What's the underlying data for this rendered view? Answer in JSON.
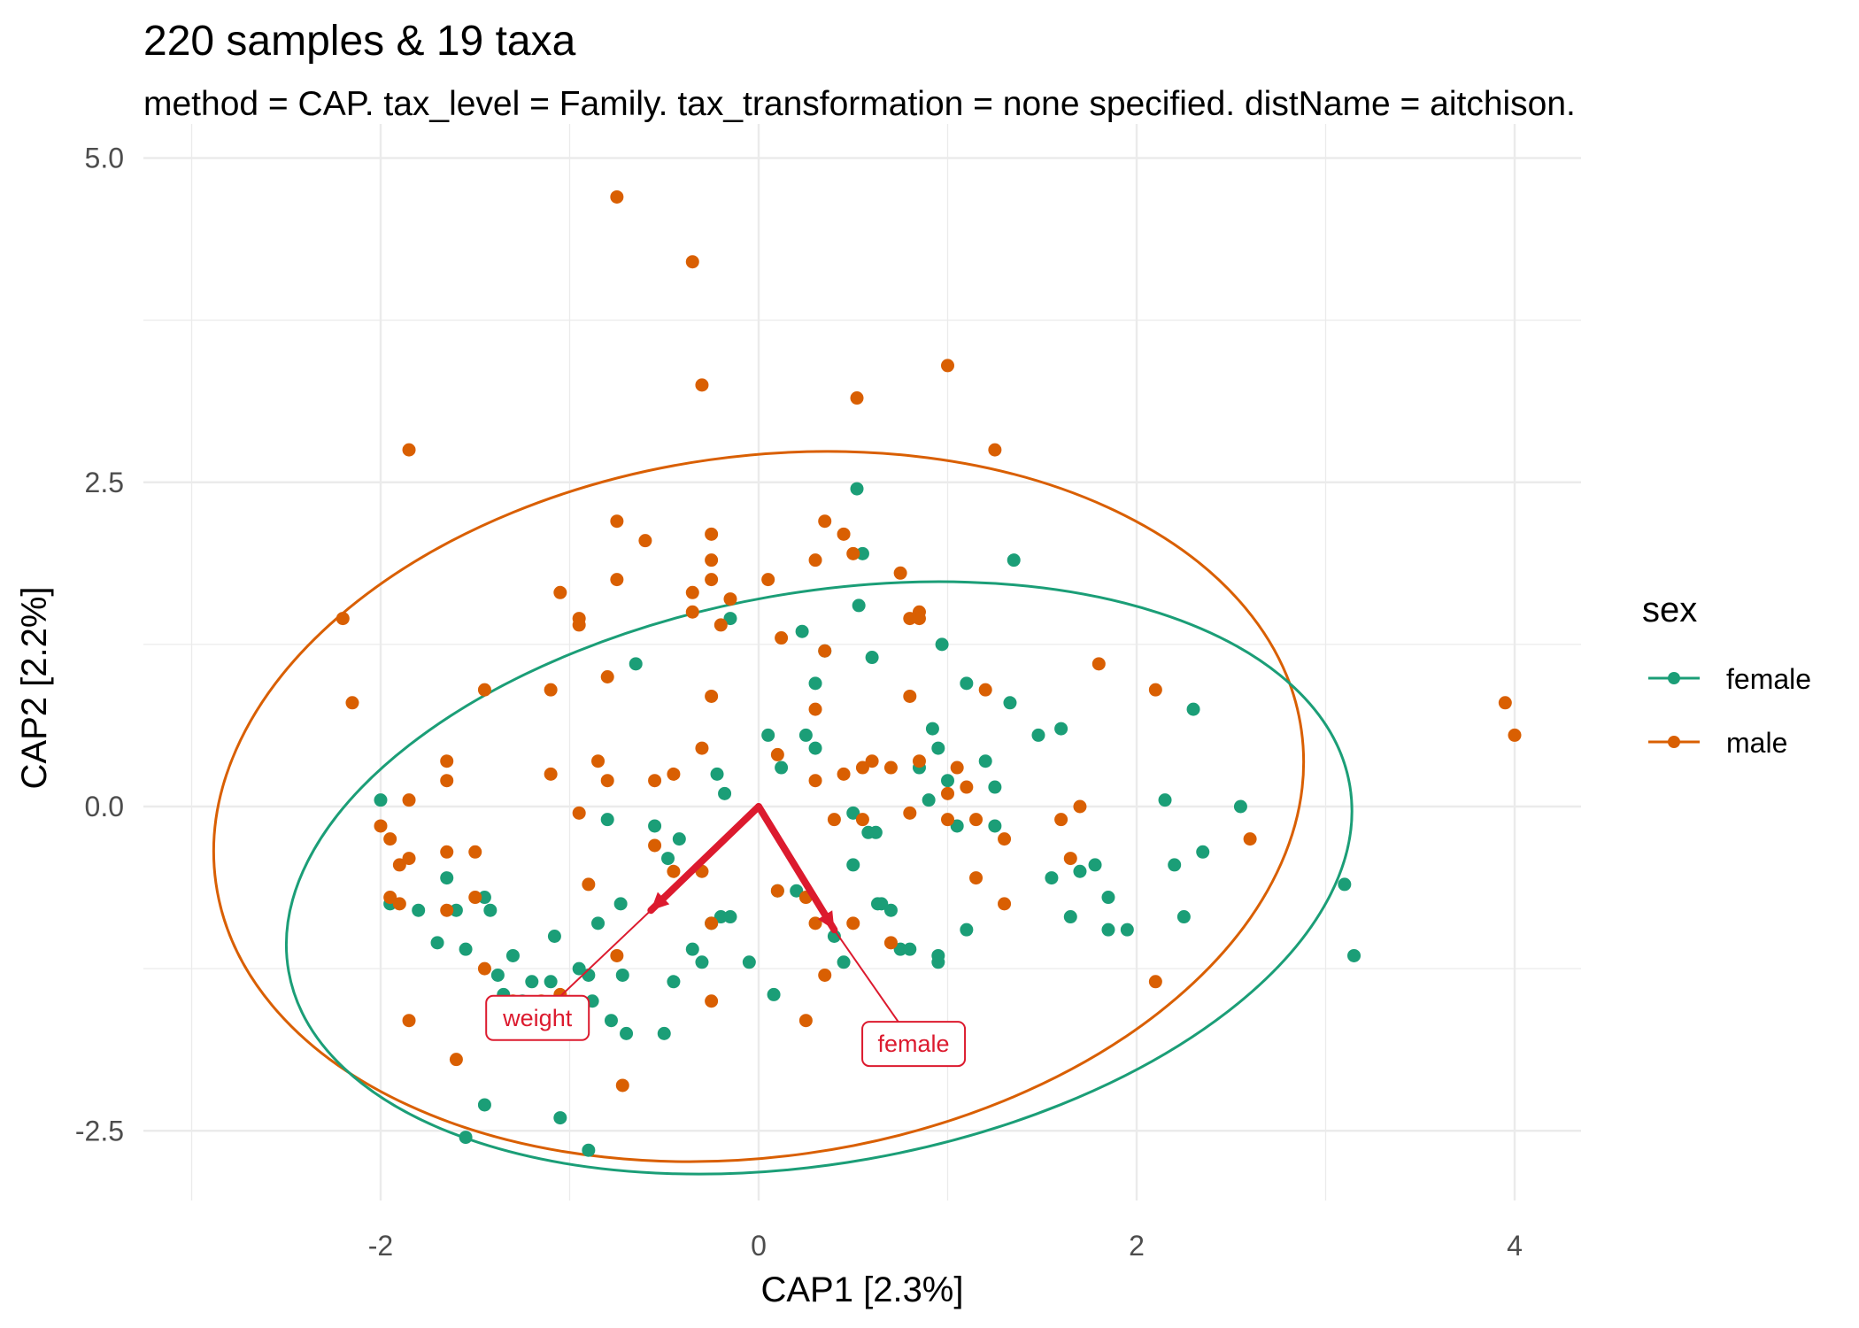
{
  "chart_data": {
    "type": "scatter",
    "title": "220 samples & 19 taxa",
    "subtitle": "method = CAP. tax_level = Family. tax_transformation = none specified. distName = aitchison.",
    "xlabel": "CAP1 [2.3%]",
    "ylabel": "CAP2 [2.2%]",
    "xlim": [
      -3.0,
      4.4
    ],
    "ylim": [
      -3.1,
      5.2
    ],
    "x_ticks": [
      -2,
      0,
      2,
      4
    ],
    "x_tick_labels": [
      "-2",
      "0",
      "2",
      "4"
    ],
    "y_ticks": [
      -2.5,
      0.0,
      2.5,
      5.0
    ],
    "y_tick_labels": [
      "-2.5",
      "0.0",
      "2.5",
      "5.0"
    ],
    "grid": true,
    "legend": {
      "title": "sex",
      "position": "right",
      "entries": [
        "female",
        "male"
      ]
    },
    "colors": {
      "female": "#1b9e77",
      "male": "#d95f02",
      "arrow": "#dc1a2e",
      "grid": "#ebebeb"
    },
    "series": [
      {
        "name": "female",
        "points": [
          [
            -2.0,
            0.05
          ],
          [
            -1.95,
            -0.75
          ],
          [
            -1.8,
            -0.8
          ],
          [
            -1.7,
            -1.05
          ],
          [
            -1.65,
            -0.55
          ],
          [
            -1.6,
            -0.8
          ],
          [
            -1.55,
            -1.1
          ],
          [
            -1.45,
            -0.7
          ],
          [
            -1.42,
            -0.8
          ],
          [
            -1.38,
            -1.3
          ],
          [
            -1.35,
            -1.45
          ],
          [
            -1.3,
            -1.15
          ],
          [
            -1.25,
            -1.5
          ],
          [
            -1.2,
            -1.35
          ],
          [
            -1.1,
            -1.35
          ],
          [
            -1.08,
            -1.0
          ],
          [
            -0.95,
            -1.25
          ],
          [
            -0.9,
            -1.3
          ],
          [
            -0.88,
            -1.5
          ],
          [
            -0.85,
            -0.9
          ],
          [
            -0.8,
            -0.1
          ],
          [
            -0.78,
            -1.65
          ],
          [
            -0.73,
            -0.75
          ],
          [
            -0.72,
            -1.3
          ],
          [
            -0.7,
            -1.75
          ],
          [
            -0.65,
            1.1
          ],
          [
            -0.55,
            -0.15
          ],
          [
            -0.5,
            -1.75
          ],
          [
            -0.48,
            -0.4
          ],
          [
            -0.45,
            -1.35
          ],
          [
            -0.42,
            -0.25
          ],
          [
            -0.35,
            -1.1
          ],
          [
            -0.3,
            -1.2
          ],
          [
            -0.25,
            -0.9
          ],
          [
            -0.2,
            -0.85
          ],
          [
            -0.22,
            0.25
          ],
          [
            -0.18,
            0.1
          ],
          [
            -0.15,
            -0.85
          ],
          [
            -0.05,
            -1.2
          ],
          [
            0.05,
            0.55
          ],
          [
            0.08,
            -1.45
          ],
          [
            0.1,
            -0.65
          ],
          [
            0.12,
            0.3
          ],
          [
            0.2,
            -0.65
          ],
          [
            0.23,
            1.35
          ],
          [
            0.25,
            0.55
          ],
          [
            0.3,
            0.45
          ],
          [
            0.3,
            0.95
          ],
          [
            0.35,
            1.2
          ],
          [
            0.4,
            -1.0
          ],
          [
            0.45,
            -1.2
          ],
          [
            0.5,
            -0.05
          ],
          [
            0.5,
            -0.45
          ],
          [
            0.53,
            1.55
          ],
          [
            0.55,
            1.95
          ],
          [
            0.58,
            -0.2
          ],
          [
            0.6,
            1.15
          ],
          [
            0.62,
            -0.2
          ],
          [
            0.63,
            -0.75
          ],
          [
            0.65,
            -0.75
          ],
          [
            0.7,
            -0.8
          ],
          [
            0.75,
            -1.1
          ],
          [
            0.8,
            -1.1
          ],
          [
            0.85,
            0.3
          ],
          [
            0.9,
            0.05
          ],
          [
            0.92,
            0.6
          ],
          [
            0.95,
            0.45
          ],
          [
            0.95,
            -1.2
          ],
          [
            0.95,
            -1.15
          ],
          [
            0.97,
            1.25
          ],
          [
            1.0,
            0.2
          ],
          [
            1.05,
            -0.15
          ],
          [
            1.1,
            0.95
          ],
          [
            1.1,
            -0.95
          ],
          [
            1.2,
            0.35
          ],
          [
            1.25,
            -0.15
          ],
          [
            1.25,
            0.15
          ],
          [
            1.33,
            0.8
          ],
          [
            1.35,
            1.9
          ],
          [
            1.48,
            0.55
          ],
          [
            1.55,
            -0.55
          ],
          [
            1.6,
            0.6
          ],
          [
            1.65,
            -0.85
          ],
          [
            1.7,
            -0.5
          ],
          [
            1.78,
            -0.45
          ],
          [
            1.85,
            -0.95
          ],
          [
            1.85,
            -0.7
          ],
          [
            1.95,
            -0.95
          ],
          [
            2.15,
            0.05
          ],
          [
            2.2,
            -0.45
          ],
          [
            2.25,
            -0.85
          ],
          [
            2.3,
            0.75
          ],
          [
            2.35,
            -0.35
          ],
          [
            2.55,
            0.0
          ],
          [
            3.1,
            -0.6
          ],
          [
            3.15,
            -1.15
          ],
          [
            0.52,
            2.45
          ],
          [
            -0.15,
            1.45
          ],
          [
            -0.9,
            -2.65
          ],
          [
            -1.55,
            -2.55
          ],
          [
            -1.05,
            -2.4
          ],
          [
            -1.45,
            -2.3
          ]
        ]
      },
      {
        "name": "male",
        "points": [
          [
            -0.75,
            4.7
          ],
          [
            -0.35,
            4.2
          ],
          [
            -0.3,
            3.25
          ],
          [
            1.0,
            3.4
          ],
          [
            0.52,
            3.15
          ],
          [
            1.25,
            2.75
          ],
          [
            -1.85,
            2.75
          ],
          [
            -0.75,
            2.2
          ],
          [
            -0.6,
            2.05
          ],
          [
            -0.25,
            2.1
          ],
          [
            0.35,
            2.2
          ],
          [
            0.45,
            2.1
          ],
          [
            0.5,
            1.95
          ],
          [
            0.75,
            1.8
          ],
          [
            0.3,
            1.9
          ],
          [
            -0.25,
            1.9
          ],
          [
            0.05,
            1.75
          ],
          [
            -0.75,
            1.75
          ],
          [
            -1.05,
            1.65
          ],
          [
            -0.35,
            1.65
          ],
          [
            -0.25,
            1.75
          ],
          [
            -0.15,
            1.6
          ],
          [
            -0.95,
            1.45
          ],
          [
            -0.95,
            1.4
          ],
          [
            -0.35,
            1.5
          ],
          [
            -0.2,
            1.4
          ],
          [
            0.85,
            1.5
          ],
          [
            0.85,
            1.45
          ],
          [
            0.8,
            1.45
          ],
          [
            0.12,
            1.3
          ],
          [
            0.35,
            1.2
          ],
          [
            -2.2,
            1.45
          ],
          [
            -2.15,
            0.8
          ],
          [
            -1.45,
            0.9
          ],
          [
            -1.1,
            0.9
          ],
          [
            -0.8,
            1.0
          ],
          [
            -0.25,
            0.85
          ],
          [
            0.8,
            0.85
          ],
          [
            1.2,
            0.9
          ],
          [
            1.8,
            1.1
          ],
          [
            2.1,
            0.9
          ],
          [
            0.3,
            0.75
          ],
          [
            -0.3,
            0.45
          ],
          [
            0.1,
            0.4
          ],
          [
            -1.65,
            0.35
          ],
          [
            -1.1,
            0.25
          ],
          [
            -0.85,
            0.35
          ],
          [
            -0.8,
            0.2
          ],
          [
            -0.55,
            0.2
          ],
          [
            -0.45,
            0.25
          ],
          [
            0.3,
            0.2
          ],
          [
            0.45,
            0.25
          ],
          [
            0.55,
            0.3
          ],
          [
            0.6,
            0.35
          ],
          [
            0.7,
            0.3
          ],
          [
            0.85,
            0.35
          ],
          [
            1.0,
            0.1
          ],
          [
            1.05,
            0.3
          ],
          [
            1.1,
            0.15
          ],
          [
            -1.85,
            0.05
          ],
          [
            -1.65,
            0.2
          ],
          [
            -0.95,
            -0.05
          ],
          [
            0.4,
            -0.1
          ],
          [
            0.55,
            -0.1
          ],
          [
            0.8,
            -0.05
          ],
          [
            1.0,
            -0.1
          ],
          [
            1.15,
            -0.1
          ],
          [
            1.3,
            -0.25
          ],
          [
            1.6,
            -0.1
          ],
          [
            1.7,
            0.0
          ],
          [
            -2.0,
            -0.15
          ],
          [
            -1.95,
            -0.25
          ],
          [
            -1.9,
            -0.45
          ],
          [
            -1.85,
            -0.4
          ],
          [
            -1.65,
            -0.35
          ],
          [
            -1.5,
            -0.35
          ],
          [
            -1.95,
            -0.7
          ],
          [
            -1.9,
            -0.75
          ],
          [
            -1.65,
            -0.8
          ],
          [
            -1.5,
            -0.7
          ],
          [
            -0.9,
            -0.6
          ],
          [
            -0.55,
            -0.3
          ],
          [
            -0.45,
            -0.5
          ],
          [
            -0.3,
            -0.5
          ],
          [
            -0.25,
            -0.9
          ],
          [
            0.1,
            -0.65
          ],
          [
            0.25,
            -0.7
          ],
          [
            0.3,
            -0.9
          ],
          [
            0.5,
            -0.9
          ],
          [
            0.35,
            -1.3
          ],
          [
            0.7,
            -1.05
          ],
          [
            1.15,
            -0.55
          ],
          [
            1.3,
            -0.75
          ],
          [
            1.65,
            -0.4
          ],
          [
            2.1,
            -1.35
          ],
          [
            2.6,
            -0.25
          ],
          [
            -1.45,
            -1.25
          ],
          [
            -1.3,
            -1.5
          ],
          [
            -1.15,
            -1.5
          ],
          [
            -1.05,
            -1.45
          ],
          [
            -0.75,
            -1.15
          ],
          [
            -1.85,
            -1.65
          ],
          [
            -1.6,
            -1.95
          ],
          [
            -0.25,
            -1.5
          ],
          [
            0.25,
            -1.65
          ],
          [
            -0.72,
            -2.15
          ],
          [
            3.95,
            0.8
          ],
          [
            4.0,
            0.55
          ]
        ]
      }
    ],
    "ellipses": [
      {
        "name": "male",
        "center": [
          0.0,
          0.0
        ],
        "rx": 2.9,
        "ry": 2.7,
        "rotation_deg": 8
      },
      {
        "name": "female",
        "center": [
          0.32,
          -0.55
        ],
        "rx": 2.85,
        "ry": 2.2,
        "rotation_deg": 10
      }
    ],
    "arrows": [
      {
        "label": "weight",
        "x": -0.57,
        "y": -0.8,
        "label_x": -1.17,
        "label_y": -1.63
      },
      {
        "label": "female",
        "x": 0.4,
        "y": -0.95,
        "label_x": 0.82,
        "label_y": -1.83
      }
    ]
  }
}
